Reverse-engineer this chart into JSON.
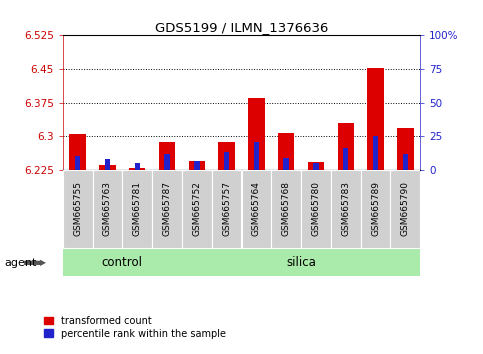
{
  "title": "GDS5199 / ILMN_1376636",
  "samples": [
    "GSM665755",
    "GSM665763",
    "GSM665781",
    "GSM665787",
    "GSM665752",
    "GSM665757",
    "GSM665764",
    "GSM665768",
    "GSM665780",
    "GSM665783",
    "GSM665789",
    "GSM665790"
  ],
  "n_control": 4,
  "n_silica": 8,
  "transformed_count": [
    6.305,
    6.237,
    6.23,
    6.288,
    6.245,
    6.287,
    6.385,
    6.307,
    6.242,
    6.33,
    6.452,
    6.318
  ],
  "percentile_rank": [
    10,
    8,
    5,
    12,
    7,
    13,
    21,
    9,
    5,
    16,
    25,
    12
  ],
  "base_value": 6.225,
  "ylim_left": [
    6.225,
    6.525
  ],
  "ylim_right": [
    0,
    100
  ],
  "yticks_left": [
    6.225,
    6.3,
    6.375,
    6.45,
    6.525
  ],
  "yticks_right": [
    0,
    25,
    50,
    75,
    100
  ],
  "ytick_labels_left": [
    "6.225",
    "6.3",
    "6.375",
    "6.45",
    "6.525"
  ],
  "ytick_labels_right": [
    "0",
    "25",
    "50",
    "75",
    "100%"
  ],
  "dotted_lines": [
    6.3,
    6.375,
    6.45
  ],
  "bar_color_red": "#dd0000",
  "bar_color_blue": "#2222cc",
  "group_bg_color": "#aaeaaa",
  "tick_label_bg": "#d0d0d0",
  "axis_left_color": "#cc0000",
  "axis_right_color": "#2222cc",
  "legend_red_label": "transformed count",
  "legend_blue_label": "percentile rank within the sample",
  "agent_label": "agent",
  "control_label": "control",
  "silica_label": "silica",
  "bar_width": 0.55,
  "blue_bar_width": 0.18
}
